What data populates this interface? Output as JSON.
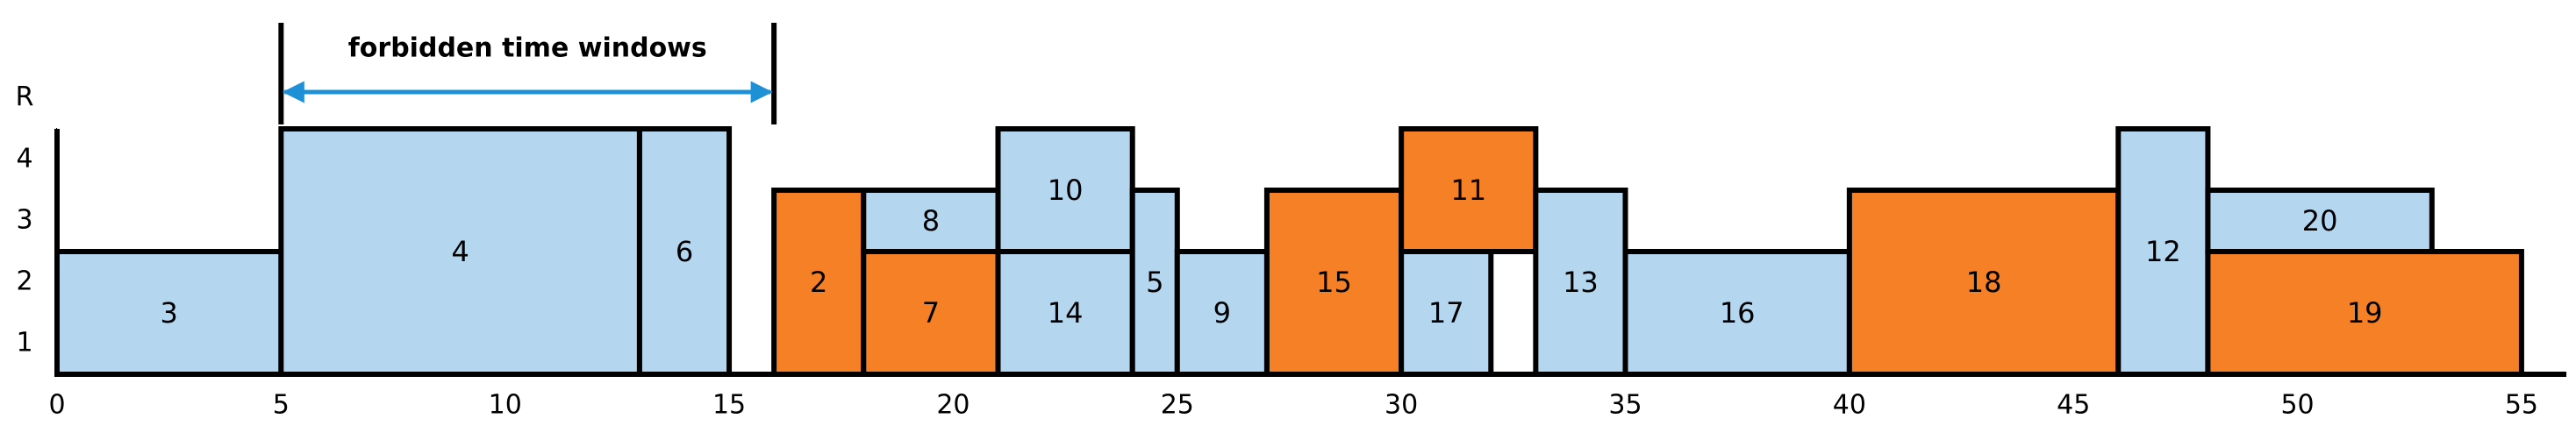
{
  "chart_data": {
    "type": "gantt",
    "y_label": "R",
    "xlim": [
      0,
      56
    ],
    "xticks": [
      0,
      5,
      10,
      15,
      20,
      25,
      30,
      35,
      40,
      45,
      50,
      55
    ],
    "ylim": [
      0,
      4
    ],
    "yticks": [
      1,
      2,
      3,
      4
    ],
    "annotation": {
      "text": "forbidden time windows",
      "start": 5,
      "end": 16,
      "color": "#1e90d6"
    },
    "tasks": [
      {
        "label": "3",
        "start": 0,
        "end": 5,
        "bottom": 0,
        "top": 2,
        "color": "#b4d6ef"
      },
      {
        "label": "4",
        "start": 5,
        "end": 13,
        "bottom": 0,
        "top": 4,
        "color": "#b4d6ef"
      },
      {
        "label": "6",
        "start": 13,
        "end": 15,
        "bottom": 0,
        "top": 4,
        "color": "#b4d6ef"
      },
      {
        "label": "2",
        "start": 16,
        "end": 18,
        "bottom": 0,
        "top": 3,
        "color": "#f58026"
      },
      {
        "label": "7",
        "start": 18,
        "end": 21,
        "bottom": 0,
        "top": 2,
        "color": "#f58026"
      },
      {
        "label": "8",
        "start": 18,
        "end": 21,
        "bottom": 2,
        "top": 3,
        "color": "#b4d6ef"
      },
      {
        "label": "14",
        "start": 21,
        "end": 24,
        "bottom": 0,
        "top": 2,
        "color": "#b4d6ef"
      },
      {
        "label": "10",
        "start": 21,
        "end": 24,
        "bottom": 2,
        "top": 4,
        "color": "#b4d6ef"
      },
      {
        "label": "5",
        "start": 24,
        "end": 25,
        "bottom": 0,
        "top": 3,
        "color": "#b4d6ef"
      },
      {
        "label": "9",
        "start": 25,
        "end": 27,
        "bottom": 0,
        "top": 2,
        "color": "#b4d6ef"
      },
      {
        "label": "15",
        "start": 27,
        "end": 30,
        "bottom": 0,
        "top": 3,
        "color": "#f58026"
      },
      {
        "label": "17",
        "start": 30,
        "end": 32,
        "bottom": 0,
        "top": 2,
        "color": "#b4d6ef"
      },
      {
        "label": "11",
        "start": 30,
        "end": 33,
        "bottom": 2,
        "top": 4,
        "color": "#f58026"
      },
      {
        "label": "13",
        "start": 33,
        "end": 35,
        "bottom": 0,
        "top": 3,
        "color": "#b4d6ef"
      },
      {
        "label": "16",
        "start": 35,
        "end": 40,
        "bottom": 0,
        "top": 2,
        "color": "#b4d6ef"
      },
      {
        "label": "18",
        "start": 40,
        "end": 46,
        "bottom": 0,
        "top": 3,
        "color": "#f58026"
      },
      {
        "label": "12",
        "start": 46,
        "end": 48,
        "bottom": 0,
        "top": 4,
        "color": "#b4d6ef"
      },
      {
        "label": "20",
        "start": 48,
        "end": 53,
        "bottom": 2,
        "top": 3,
        "color": "#b4d6ef"
      },
      {
        "label": "19",
        "start": 48,
        "end": 55,
        "bottom": 0,
        "top": 2,
        "color": "#f58026"
      }
    ]
  }
}
